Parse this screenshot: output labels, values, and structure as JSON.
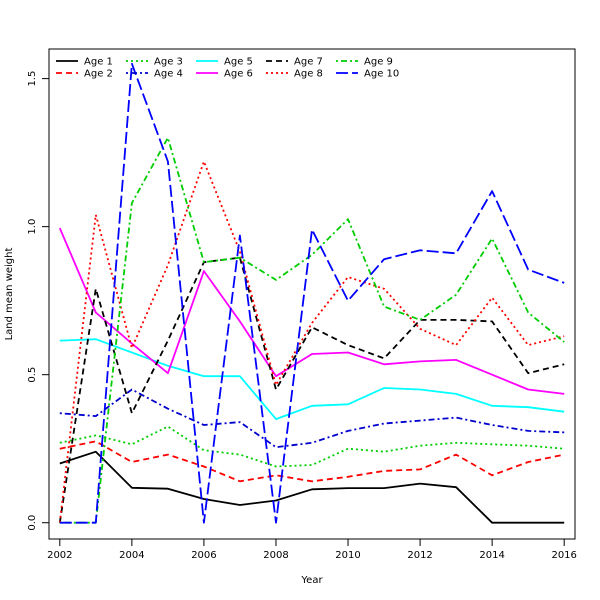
{
  "chart_data": {
    "type": "line",
    "title": "",
    "xlabel": "Year",
    "ylabel": "Land mean weight",
    "x": [
      2002,
      2003,
      2004,
      2005,
      2006,
      2007,
      2008,
      2009,
      2010,
      2011,
      2012,
      2013,
      2014,
      2015,
      2016
    ],
    "xlim": [
      2001.7,
      2016.3
    ],
    "ylim": [
      -0.055,
      1.6
    ],
    "xticks": [
      "2002",
      "2004",
      "2006",
      "2008",
      "2010",
      "2012",
      "2014",
      "2016"
    ],
    "yticks": [
      "0.0",
      "0.5",
      "1.0",
      "1.5"
    ],
    "grid": false,
    "legend_position": "top-left",
    "series": [
      {
        "name": "Age 1",
        "color": "#000000",
        "dash": "solid",
        "values": [
          0.2,
          0.24,
          0.118,
          0.115,
          0.08,
          0.06,
          0.075,
          0.113,
          0.117,
          0.117,
          0.132,
          0.12,
          0.0,
          0.0,
          0.0
        ]
      },
      {
        "name": "Age 2",
        "color": "#ff0000",
        "dash": "dashed",
        "values": [
          0.25,
          0.275,
          0.205,
          0.23,
          0.19,
          0.14,
          0.16,
          0.14,
          0.155,
          0.175,
          0.18,
          0.23,
          0.16,
          0.205,
          0.23
        ]
      },
      {
        "name": "Age 3",
        "color": "#00cd00",
        "dash": "dotted",
        "values": [
          0.27,
          0.295,
          0.265,
          0.325,
          0.245,
          0.23,
          0.19,
          0.195,
          0.25,
          0.24,
          0.26,
          0.27,
          0.265,
          0.26,
          0.25
        ]
      },
      {
        "name": "Age 4",
        "color": "#0000cd",
        "dash": "dotdash",
        "values": [
          0.37,
          0.36,
          0.45,
          0.385,
          0.33,
          0.34,
          0.255,
          0.27,
          0.31,
          0.335,
          0.345,
          0.355,
          0.33,
          0.31,
          0.305
        ]
      },
      {
        "name": "Age 5",
        "color": "#00ffff",
        "dash": "solid",
        "values": [
          0.615,
          0.62,
          0.575,
          0.53,
          0.495,
          0.495,
          0.35,
          0.395,
          0.4,
          0.455,
          0.45,
          0.435,
          0.395,
          0.39,
          0.375
        ]
      },
      {
        "name": "Age 6",
        "color": "#ff00ff",
        "dash": "solid",
        "values": [
          0.995,
          0.71,
          0.605,
          0.505,
          0.85,
          0.68,
          0.495,
          0.57,
          0.575,
          0.535,
          0.545,
          0.55,
          0.5,
          0.45,
          0.435
        ]
      },
      {
        "name": "Age 7",
        "color": "#000000",
        "dash": "dashed",
        "values": [
          0.0,
          0.79,
          0.37,
          0.615,
          0.88,
          0.895,
          0.45,
          0.66,
          0.6,
          0.555,
          0.685,
          0.685,
          0.68,
          0.505,
          0.535
        ]
      },
      {
        "name": "Age 8",
        "color": "#ff0000",
        "dash": "dotted",
        "values": [
          0.0,
          1.04,
          0.59,
          0.87,
          1.22,
          0.915,
          0.465,
          0.675,
          0.83,
          0.79,
          0.655,
          0.6,
          0.76,
          0.6,
          0.63
        ]
      },
      {
        "name": "Age 9",
        "color": "#00cd00",
        "dash": "dotdash",
        "values": [
          0.0,
          0.0,
          1.08,
          1.3,
          0.88,
          0.895,
          0.82,
          0.905,
          1.025,
          0.73,
          0.685,
          0.77,
          0.96,
          0.71,
          0.61
        ]
      },
      {
        "name": "Age 10",
        "color": "#0000ff",
        "dash": "longdash",
        "values": [
          0.0,
          0.0,
          1.55,
          1.22,
          0.0,
          0.97,
          0.0,
          0.99,
          0.75,
          0.89,
          0.92,
          0.91,
          1.12,
          0.855,
          0.81
        ]
      }
    ]
  }
}
